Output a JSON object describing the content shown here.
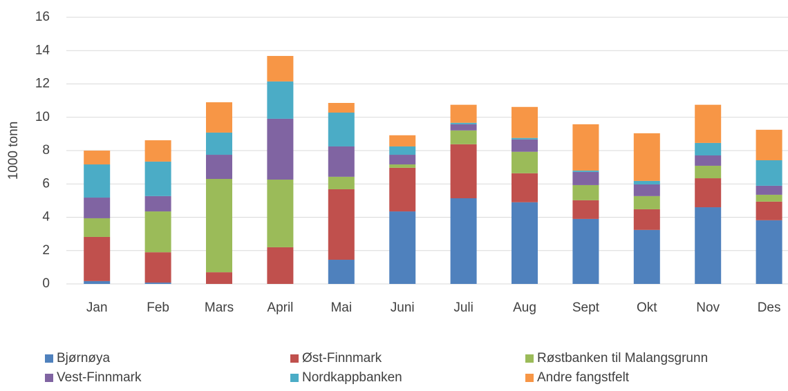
{
  "chart_data": {
    "type": "stacked_bar",
    "y_label": "1000 tonn",
    "categories": [
      "Jan",
      "Feb",
      "Mars",
      "April",
      "Mai",
      "Juni",
      "Juli",
      "Aug",
      "Sept",
      "Okt",
      "Nov",
      "Des"
    ],
    "series": [
      {
        "name": "Bjørnøya",
        "color": "#4f81bd",
        "values": [
          0.17,
          0.08,
          0,
          0,
          1.45,
          4.35,
          5.14,
          4.9,
          3.9,
          3.24,
          4.6,
          3.82
        ]
      },
      {
        "name": "Øst-Finnmark",
        "color": "#c0504d",
        "values": [
          2.65,
          1.82,
          0.7,
          2.2,
          4.23,
          2.62,
          3.24,
          1.74,
          1.12,
          1.24,
          1.74,
          1.12
        ]
      },
      {
        "name": "Røstbanken til Malangsgrunn",
        "color": "#9bbb59",
        "values": [
          1.12,
          2.45,
          5.6,
          4.06,
          0.75,
          0.2,
          0.83,
          1.29,
          0.91,
          0.79,
          0.75,
          0.41
        ]
      },
      {
        "name": "Vest-Finnmark",
        "color": "#8064a2",
        "values": [
          1.24,
          0.92,
          1.45,
          3.65,
          1.82,
          0.58,
          0.37,
          0.74,
          0.79,
          0.7,
          0.62,
          0.54
        ]
      },
      {
        "name": "Nordkappbanken",
        "color": "#4bacc6",
        "values": [
          1.99,
          2.07,
          1.33,
          2.24,
          2.03,
          0.5,
          0.09,
          0.09,
          0.08,
          0.21,
          0.75,
          1.53
        ]
      },
      {
        "name": "Andre fangstfelt",
        "color": "#f79646",
        "values": [
          0.83,
          1.28,
          1.82,
          1.53,
          0.58,
          0.67,
          1.08,
          1.86,
          2.78,
          2.86,
          2.29,
          1.83
        ]
      }
    ],
    "ylim": [
      0,
      16
    ],
    "yticks": [
      0,
      2,
      4,
      6,
      8,
      10,
      12,
      14,
      16
    ],
    "grid": true
  }
}
